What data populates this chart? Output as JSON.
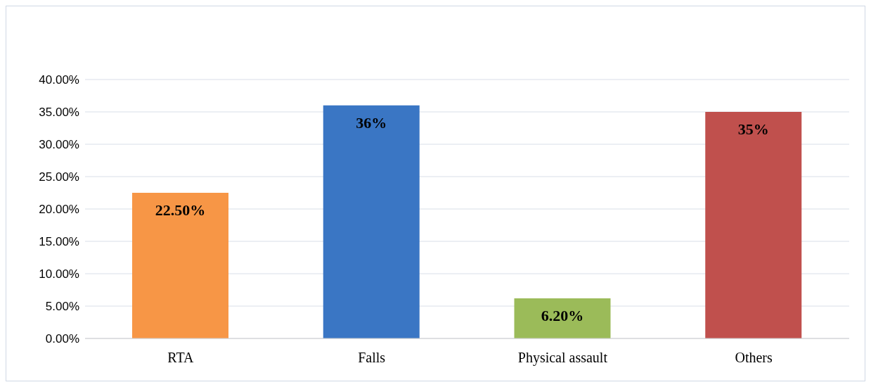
{
  "chart_data": {
    "type": "bar",
    "categories": [
      "RTA",
      "Falls",
      "Physical assault",
      "Others"
    ],
    "values": [
      22.5,
      36,
      6.2,
      35
    ],
    "colors": [
      "#f79646",
      "#3a76c4",
      "#9bbb59",
      "#c0504d"
    ],
    "value_labels": [
      "22.50%",
      "36%",
      "6.20%",
      "35%"
    ],
    "ylim": [
      0,
      40
    ],
    "yticks": [
      {
        "value": 0,
        "label": "0.00%"
      },
      {
        "value": 5,
        "label": "5.00%"
      },
      {
        "value": 10,
        "label": "10.00%"
      },
      {
        "value": 15,
        "label": "15.00%"
      },
      {
        "value": 20,
        "label": "20.00%"
      },
      {
        "value": 25,
        "label": "25.00%"
      },
      {
        "value": 30,
        "label": "30.00%"
      },
      {
        "value": 35,
        "label": "35.00%"
      },
      {
        "value": 40,
        "label": "40.00%"
      }
    ],
    "grid": "y"
  }
}
